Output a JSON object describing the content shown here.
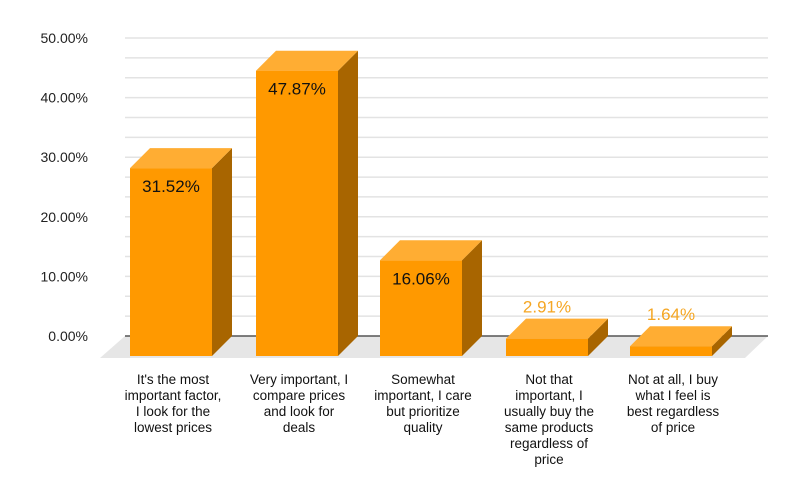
{
  "chart_data": {
    "type": "bar",
    "title": "",
    "xlabel": "",
    "ylabel": "",
    "ylim": [
      0,
      50
    ],
    "grid": true,
    "yticks": [
      "0.00%",
      "10.00%",
      "20.00%",
      "30.00%",
      "40.00%",
      "50.00%"
    ],
    "categories": [
      [
        "It's the most",
        "important factor,",
        "I look for the",
        "lowest prices"
      ],
      [
        "Very important, I",
        "compare prices",
        "and look for",
        "deals"
      ],
      [
        "Somewhat",
        "important, I care",
        "but prioritize",
        "quality"
      ],
      [
        "Not that",
        "important, I",
        "usually buy the",
        "same products",
        "regardless of",
        "price"
      ],
      [
        "Not at all, I buy",
        "what I feel is",
        "best regardless",
        "of price"
      ]
    ],
    "values": [
      31.52,
      47.87,
      16.06,
      2.91,
      1.64
    ],
    "data_labels": [
      "31.52%",
      "47.87%",
      "16.06%",
      "2.91%",
      "1.64%"
    ],
    "colors": {
      "front": "#ff9900",
      "top": "#ffad33",
      "side": "#a86500",
      "label_outside": "#f5a623",
      "label_inside": "#111111",
      "floor": "#e6e6e6",
      "grid": "#e3e3e3",
      "axis": "#555555"
    }
  }
}
